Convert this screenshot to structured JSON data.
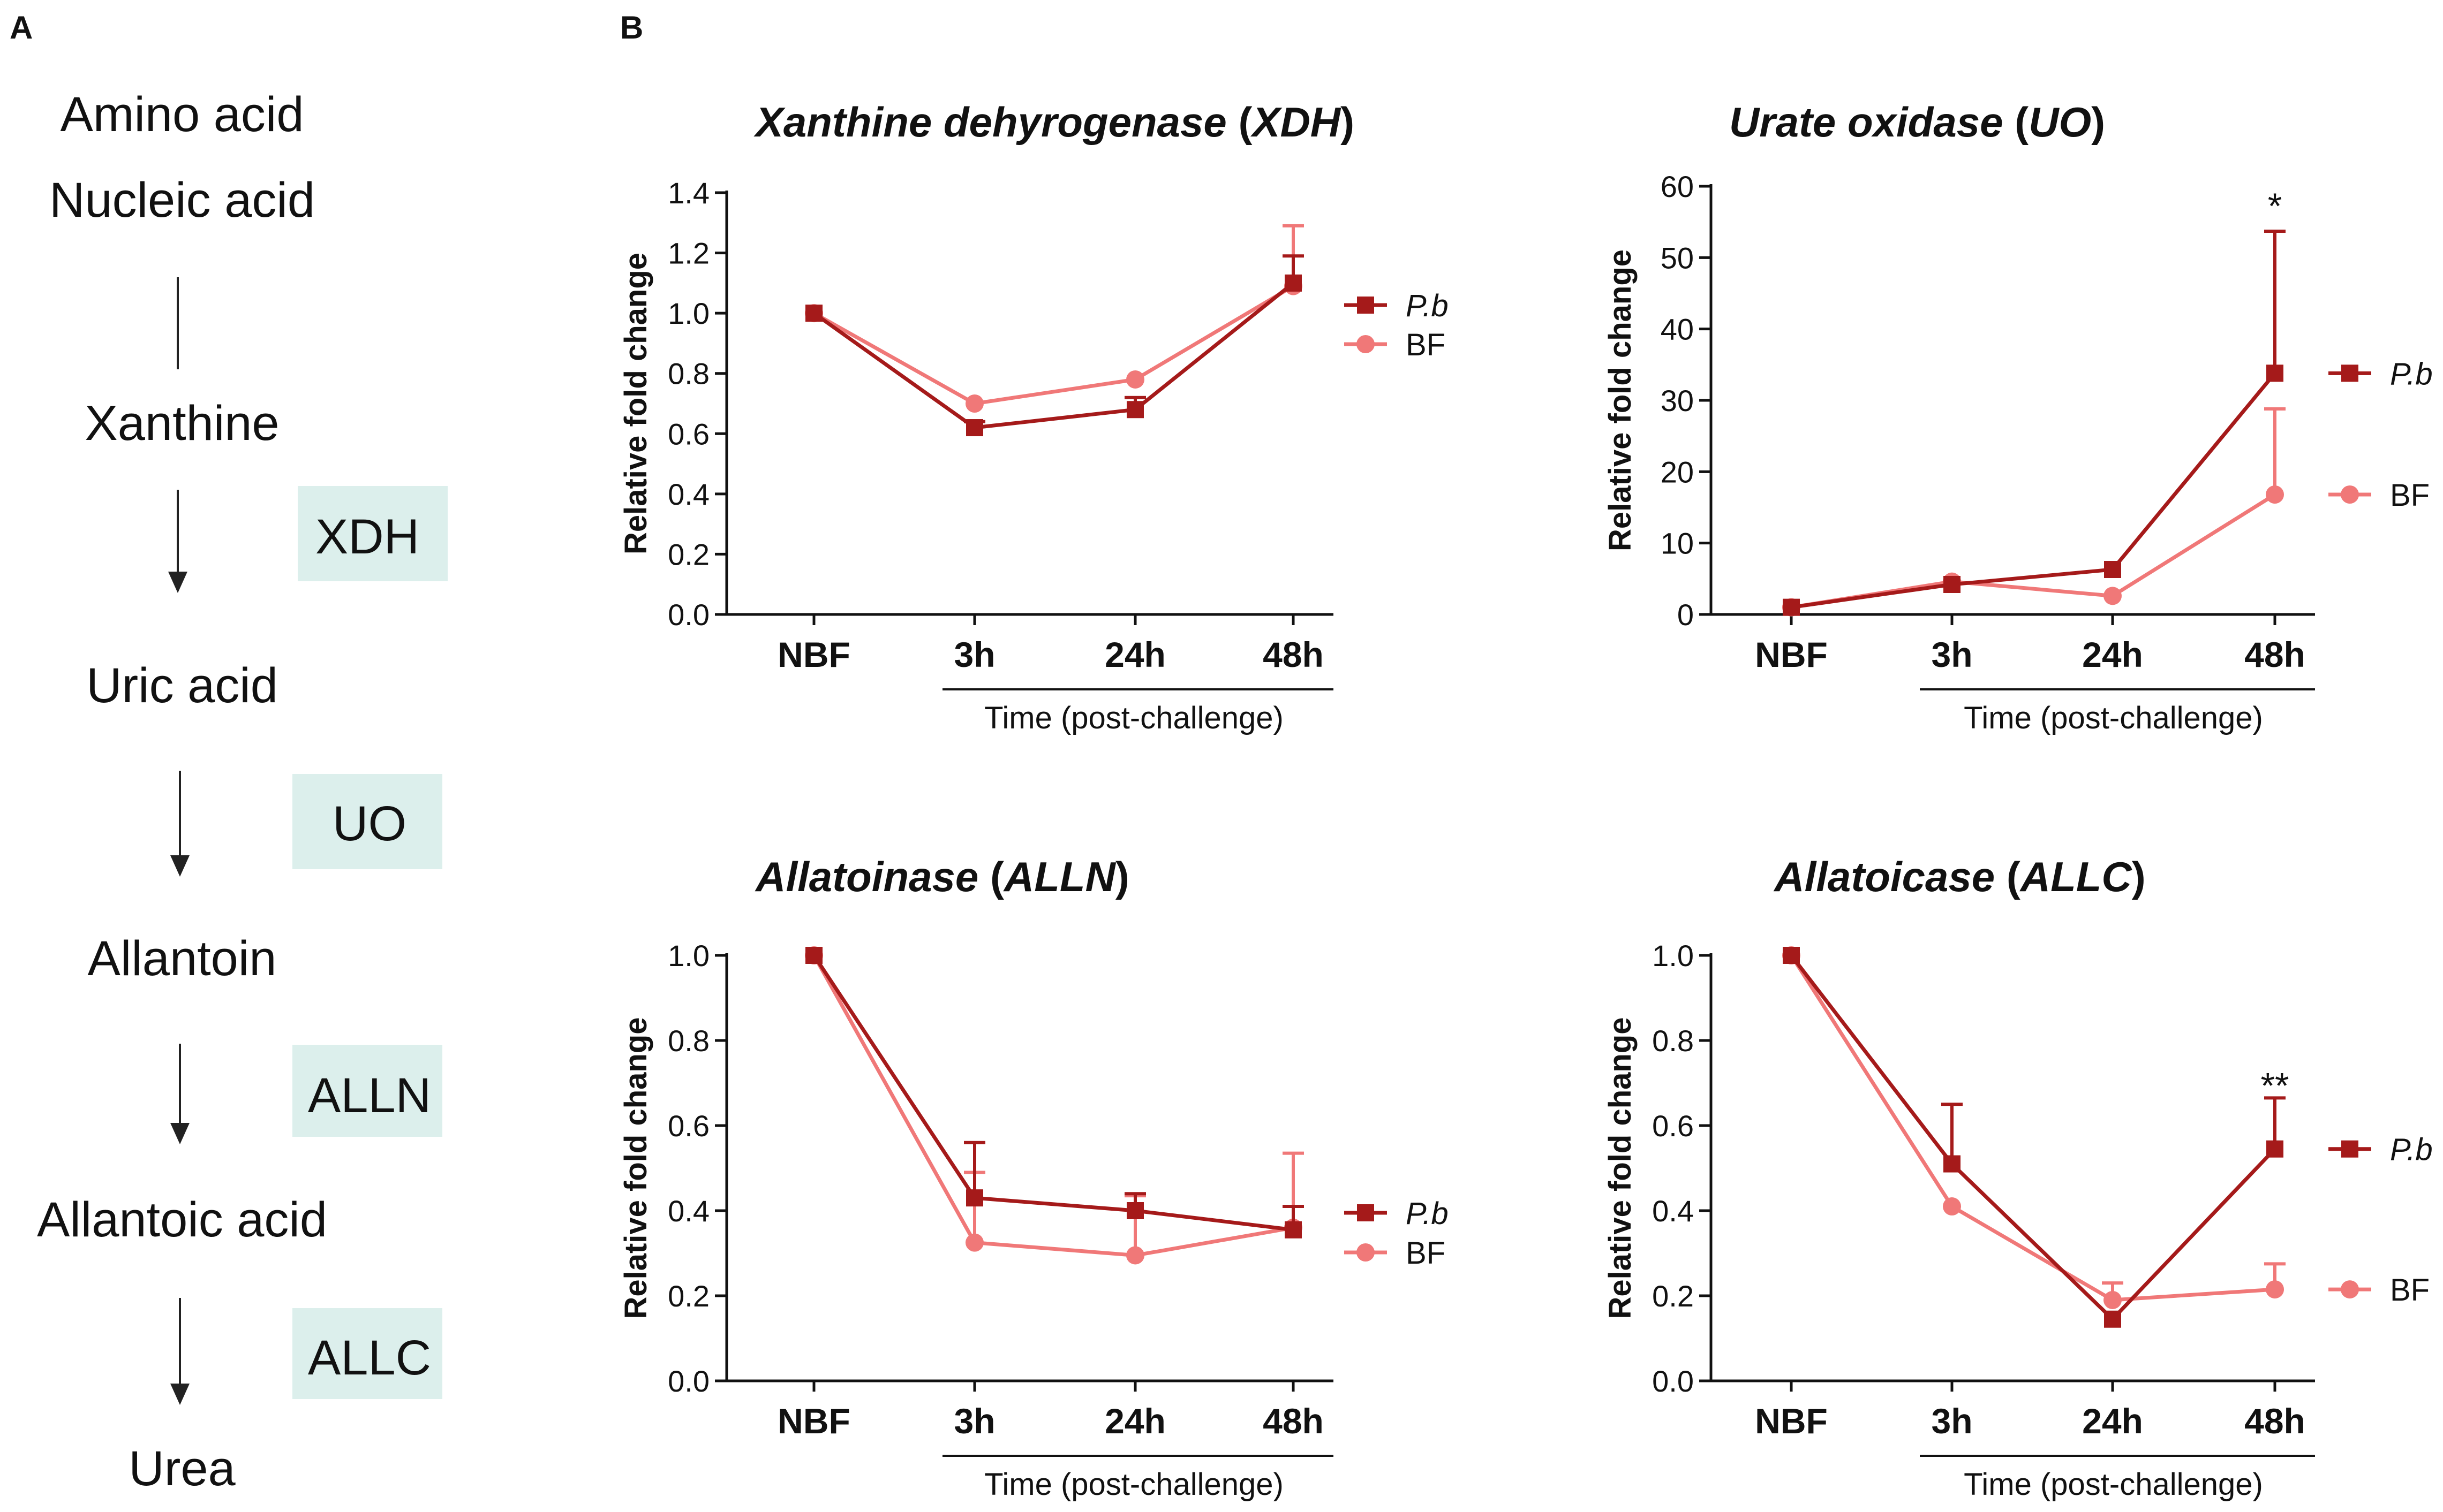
{
  "panel_a": {
    "label": "A",
    "steps": [
      "Amino acid",
      "Nucleic acid",
      "Xanthine",
      "Uric acid",
      "Allantoin",
      "Allantoic acid",
      "Urea"
    ],
    "enzymes": [
      "XDH",
      "UO",
      "ALLN",
      "ALLC"
    ],
    "enzyme_box_color": "#dcefec"
  },
  "panel_b": {
    "label": "B"
  },
  "colors": {
    "pb": "#a51a1a",
    "bf": "#f07878"
  },
  "chart_data": [
    {
      "type": "line",
      "title_italic": "Xanthine dehyrogenase",
      "title_abbrev": "XDH",
      "ylabel": "Relative fold change",
      "xlabel": "Time (post-challenge)",
      "categories": [
        "NBF",
        "3h",
        "24h",
        "48h"
      ],
      "ylim": [
        0,
        1.4
      ],
      "yticks": [
        0.0,
        0.2,
        0.4,
        0.6,
        0.8,
        1.0,
        1.2,
        1.4
      ],
      "ytick_labels": [
        "0.0",
        "0.2",
        "0.4",
        "0.6",
        "0.8",
        "1.0",
        "1.2",
        "1.4"
      ],
      "legend_position": "right-top",
      "series": [
        {
          "name": "P.b",
          "marker": "square",
          "values": [
            1.0,
            0.62,
            0.68,
            1.1
          ],
          "err": [
            0.0,
            0.02,
            0.04,
            0.09
          ]
        },
        {
          "name": "BF",
          "marker": "circle",
          "values": [
            1.0,
            0.7,
            0.78,
            1.09
          ],
          "err": [
            0.0,
            0.0,
            0.0,
            0.2
          ]
        }
      ],
      "annotations": []
    },
    {
      "type": "line",
      "title_italic": "Urate oxidase",
      "title_abbrev": "UO",
      "ylabel": "Relative fold change",
      "xlabel": "Time (post-challenge)",
      "categories": [
        "NBF",
        "3h",
        "24h",
        "48h"
      ],
      "ylim": [
        0,
        60
      ],
      "yticks": [
        0,
        10,
        20,
        30,
        40,
        50,
        60
      ],
      "ytick_labels": [
        "0",
        "10",
        "20",
        "30",
        "40",
        "50",
        "60"
      ],
      "legend_position": "right-at-end",
      "series": [
        {
          "name": "P.b",
          "marker": "square",
          "values": [
            1.0,
            4.2,
            6.3,
            33.8
          ],
          "err": [
            0.0,
            0.0,
            0.0,
            19.9
          ]
        },
        {
          "name": "BF",
          "marker": "circle",
          "values": [
            1.0,
            4.6,
            2.6,
            16.8
          ],
          "err": [
            0.0,
            0.0,
            0.0,
            12.0
          ]
        }
      ],
      "annotations": [
        {
          "category": "48h",
          "value": 57,
          "text": "*"
        }
      ]
    },
    {
      "type": "line",
      "title_italic": "Allatoinase",
      "title_abbrev": "ALLN",
      "ylabel": "Relative fold change",
      "xlabel": "Time (post-challenge)",
      "categories": [
        "NBF",
        "3h",
        "24h",
        "48h"
      ],
      "ylim": [
        0,
        1.0
      ],
      "yticks": [
        0.0,
        0.2,
        0.4,
        0.6,
        0.8,
        1.0
      ],
      "ytick_labels": [
        "0.0",
        "0.2",
        "0.4",
        "0.6",
        "0.8",
        "1.0"
      ],
      "legend_position": "right-bottom",
      "series": [
        {
          "name": "P.b",
          "marker": "square",
          "values": [
            1.0,
            0.43,
            0.4,
            0.355
          ],
          "err": [
            0.0,
            0.13,
            0.04,
            0.055
          ]
        },
        {
          "name": "BF",
          "marker": "circle",
          "values": [
            1.0,
            0.325,
            0.295,
            0.36
          ],
          "err": [
            0.0,
            0.165,
            0.14,
            0.175
          ]
        }
      ],
      "annotations": []
    },
    {
      "type": "line",
      "title_italic": "Allatoicase",
      "title_abbrev": "ALLC",
      "ylabel": "Relative fold change",
      "xlabel": "Time (post-challenge)",
      "categories": [
        "NBF",
        "3h",
        "24h",
        "48h"
      ],
      "ylim": [
        0,
        1.0
      ],
      "yticks": [
        0.0,
        0.2,
        0.4,
        0.6,
        0.8,
        1.0
      ],
      "ytick_labels": [
        "0.0",
        "0.2",
        "0.4",
        "0.6",
        "0.8",
        "1.0"
      ],
      "legend_position": "right-at-end",
      "series": [
        {
          "name": "P.b",
          "marker": "square",
          "values": [
            1.0,
            0.51,
            0.145,
            0.545
          ],
          "err": [
            0.0,
            0.14,
            0.0,
            0.12
          ]
        },
        {
          "name": "BF",
          "marker": "circle",
          "values": [
            1.0,
            0.41,
            0.19,
            0.215
          ],
          "err": [
            0.0,
            0.0,
            0.04,
            0.06
          ]
        }
      ],
      "annotations": [
        {
          "category": "48h",
          "value": 0.69,
          "text": "**"
        }
      ]
    }
  ]
}
